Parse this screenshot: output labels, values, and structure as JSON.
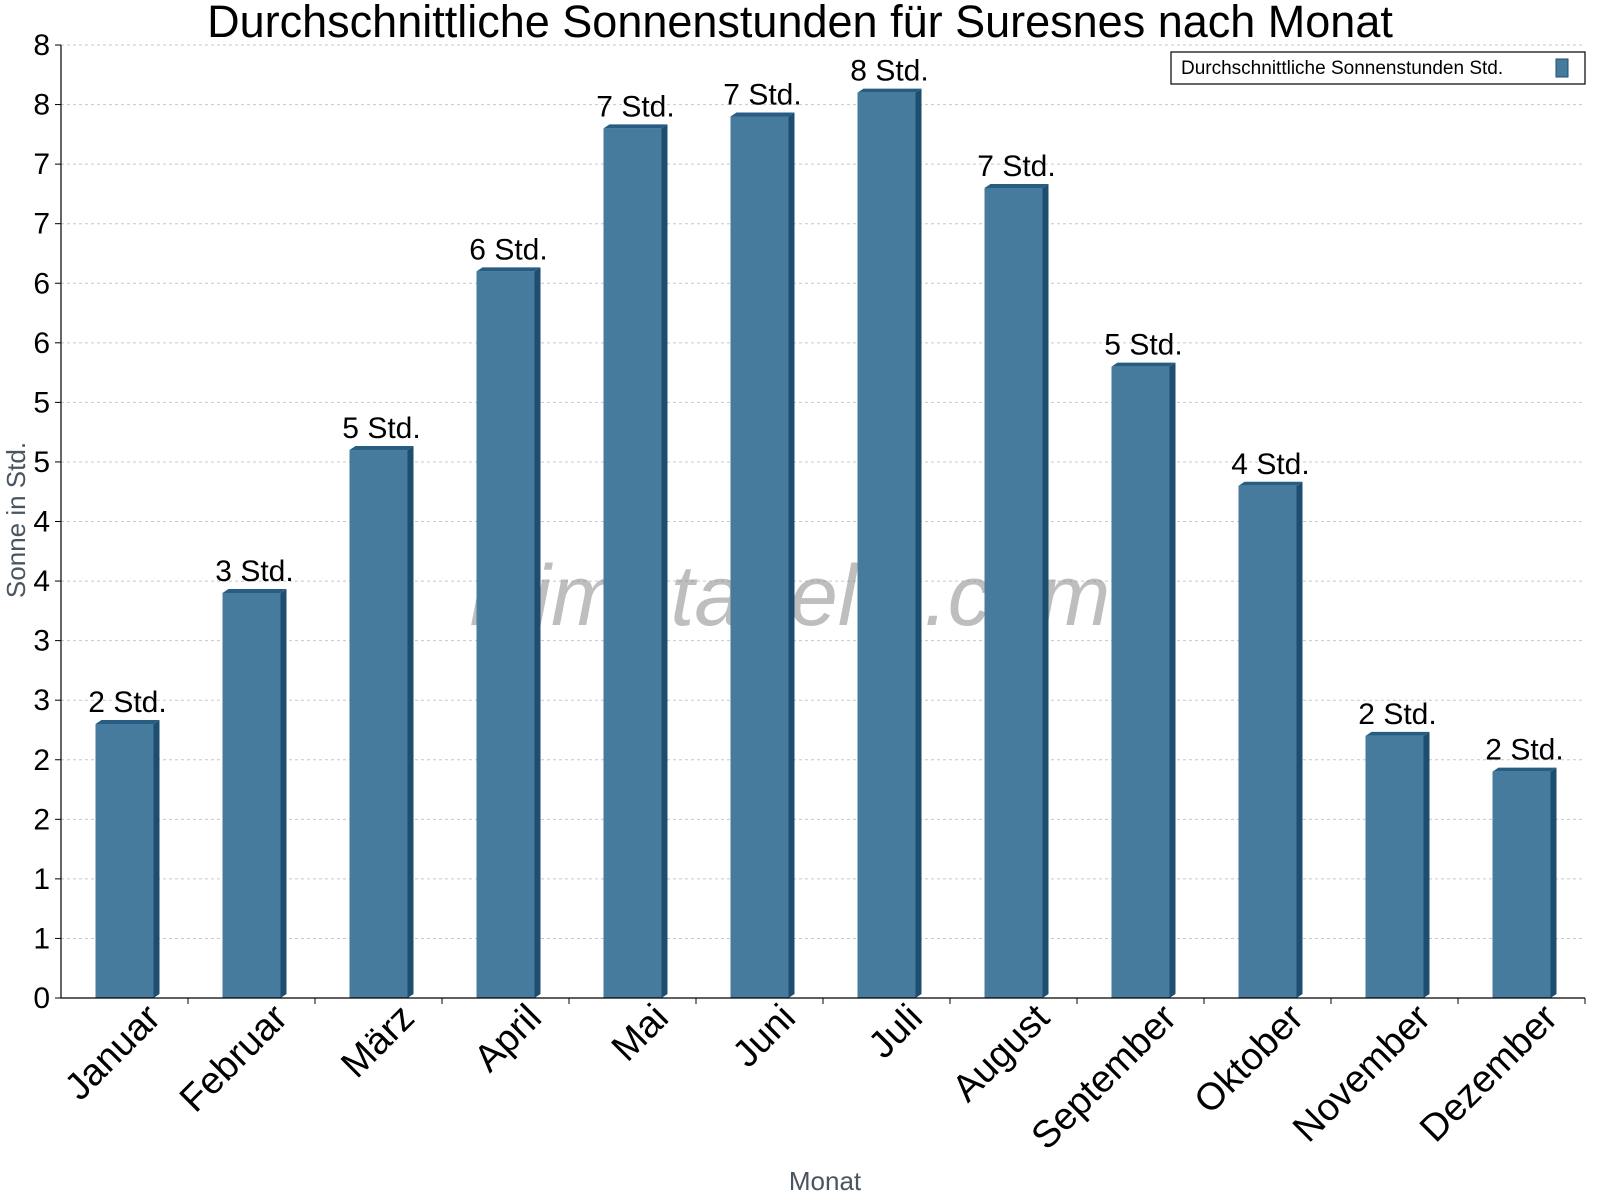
{
  "chart_data": {
    "type": "bar",
    "title": "Durchschnittliche Sonnenstunden für Suresnes nach Monat",
    "xlabel": "Monat",
    "ylabel": "Sonne in Std.",
    "categories": [
      "Januar",
      "Februar",
      "März",
      "April",
      "Mai",
      "Juni",
      "Juli",
      "August",
      "September",
      "Oktober",
      "November",
      "Dezember"
    ],
    "series": [
      {
        "name": "Durchschnittliche Sonnenstunden Std.",
        "values": [
          2.3,
          3.4,
          4.6,
          6.1,
          7.3,
          7.4,
          7.6,
          6.8,
          5.3,
          4.3,
          2.2,
          1.9
        ],
        "data_labels": [
          "2 Std.",
          "3 Std.",
          "5 Std.",
          "6 Std.",
          "7 Std.",
          "7 Std.",
          "8 Std.",
          "7 Std.",
          "5 Std.",
          "4 Std.",
          "2 Std.",
          "2 Std."
        ]
      }
    ],
    "ylim": [
      0,
      8
    ],
    "y_ticks": [
      0,
      0.5,
      1,
      1.5,
      2,
      2.5,
      3,
      3.5,
      4,
      4.5,
      5,
      5.5,
      6,
      6.5,
      7,
      7.5,
      8
    ],
    "y_tick_labels": [
      "0",
      "1",
      "1",
      "2",
      "2",
      "3",
      "3",
      "4",
      "4",
      "5",
      "5",
      "6",
      "6",
      "7",
      "7",
      "8",
      "8"
    ],
    "grid": true,
    "legend_position": "top-right",
    "colors": {
      "bar": "#467b9e",
      "bar_side": "#1d4e70",
      "bar_top": "#275d82",
      "grid": "#c8c8c8"
    }
  },
  "watermark": "klimatabelle.com"
}
